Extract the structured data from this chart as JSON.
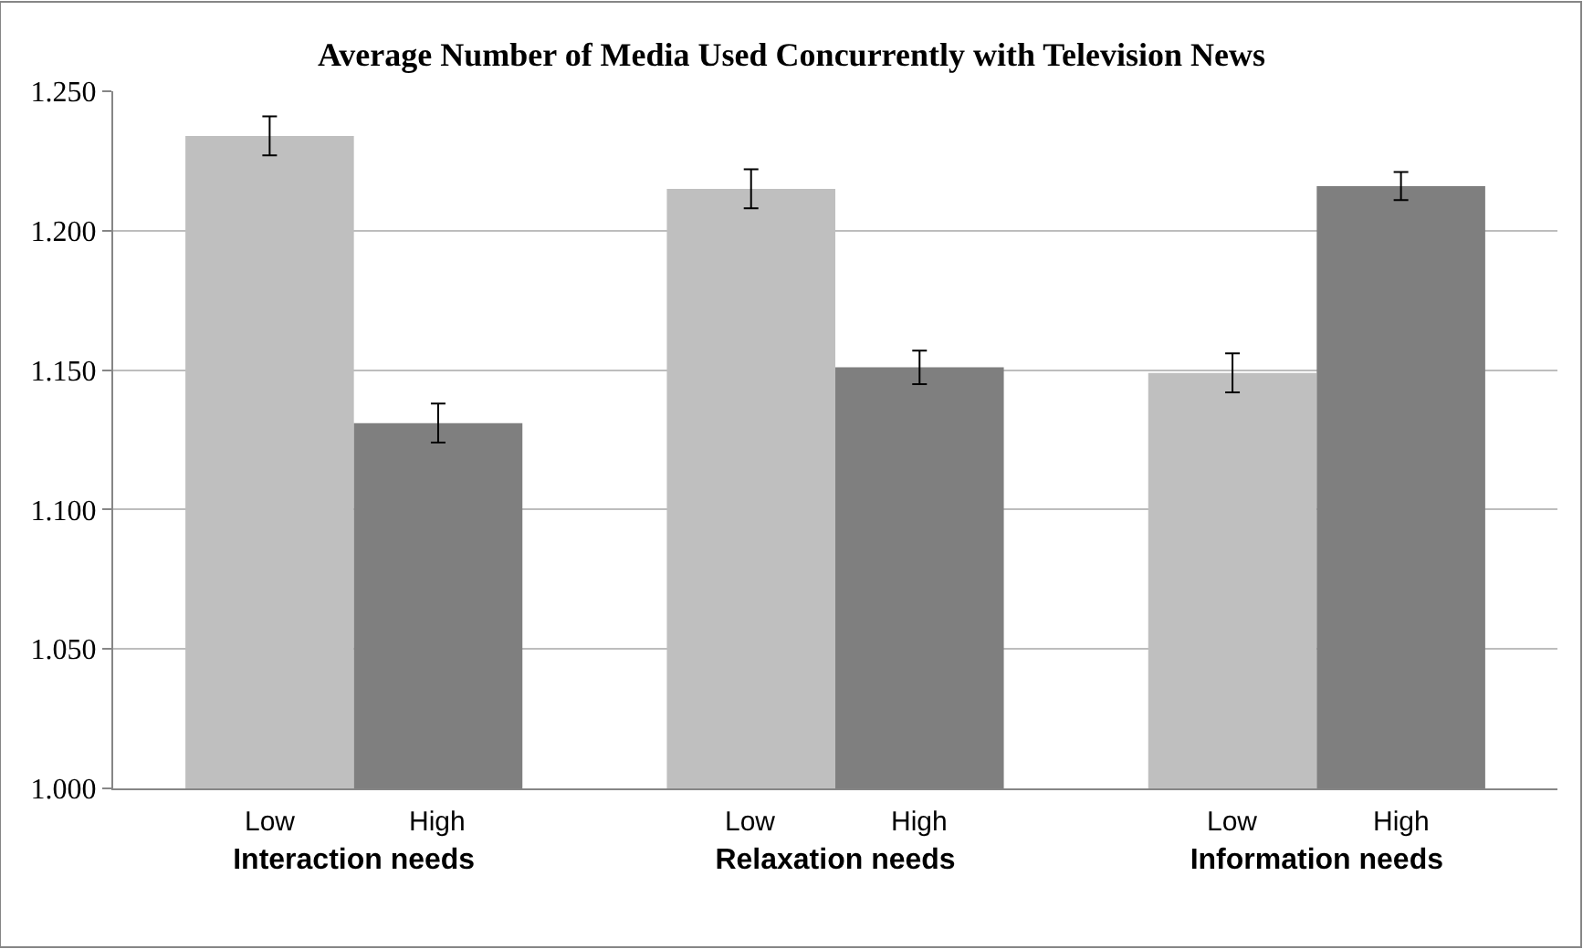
{
  "chart_data": {
    "type": "bar",
    "title": "Average Number of Media Used Concurrently with Television News",
    "categories": [
      "Interaction needs",
      "Relaxation needs",
      "Information needs"
    ],
    "series": [
      {
        "name": "Low",
        "color": "#bfbfbf",
        "values": [
          1.234,
          1.215,
          1.149
        ],
        "errors": [
          0.007,
          0.007,
          0.007
        ]
      },
      {
        "name": "High",
        "color": "#7f7f7f",
        "values": [
          1.131,
          1.151,
          1.216
        ],
        "errors": [
          0.007,
          0.006,
          0.005
        ]
      }
    ],
    "ylim": [
      1.0,
      1.25
    ],
    "yticks": [
      {
        "value": 1.0,
        "label": "1.000"
      },
      {
        "value": 1.05,
        "label": "1.050"
      },
      {
        "value": 1.1,
        "label": "1.100"
      },
      {
        "value": 1.15,
        "label": "1.150"
      },
      {
        "value": 1.2,
        "label": "1.200"
      },
      {
        "value": 1.25,
        "label": "1.250"
      }
    ],
    "grid": "y",
    "legend": false
  }
}
